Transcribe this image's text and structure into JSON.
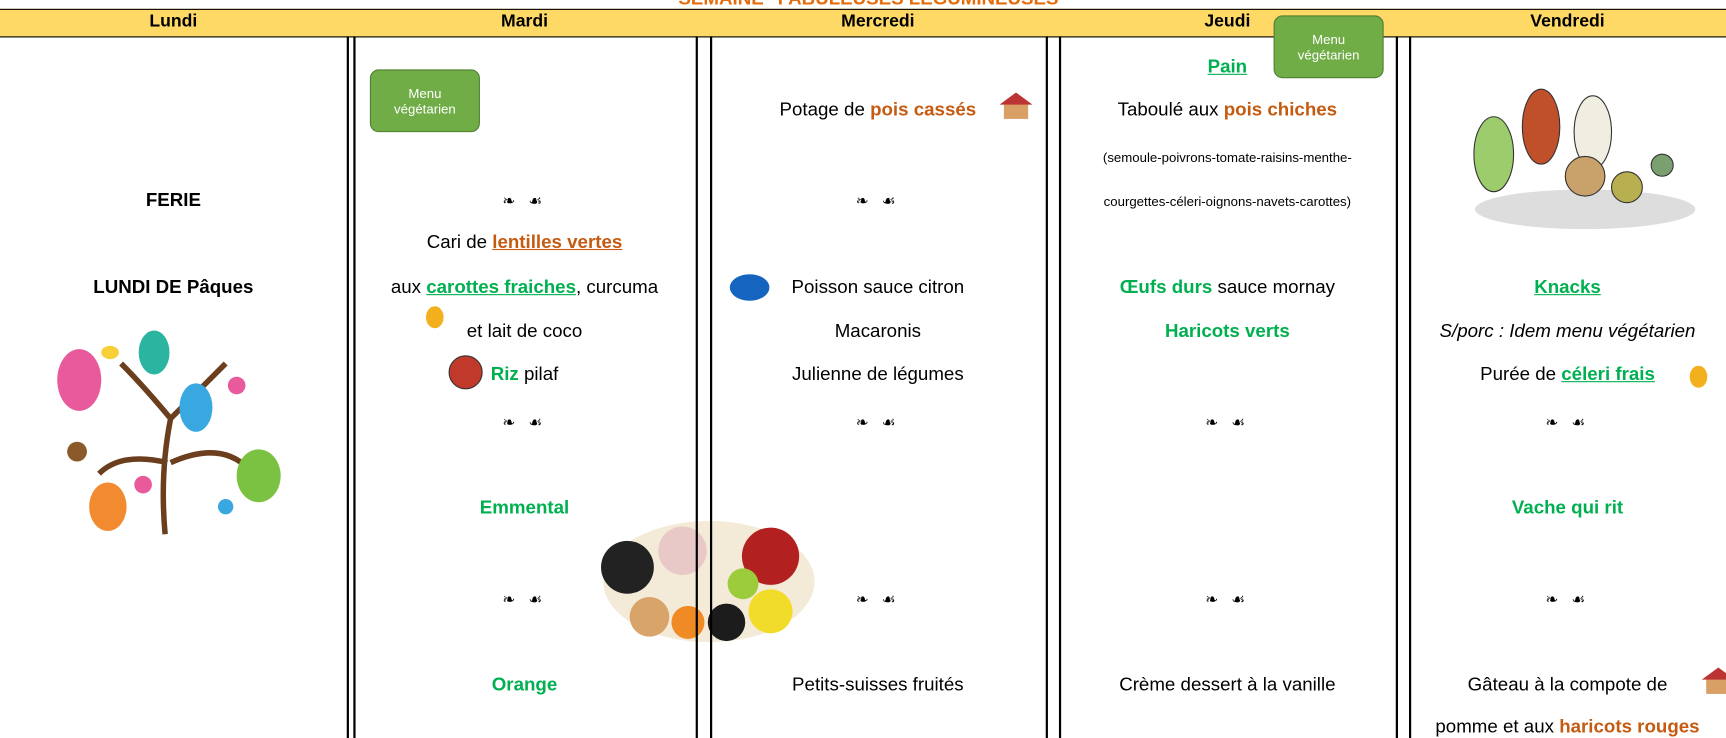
{
  "title": "SEMAINE \"FABULEUSES LÉGUMINEUSES\"",
  "badges": [
    "Menu végétarien",
    "Menu végétarien"
  ],
  "columns": [
    {
      "day": "Lundi",
      "lines": [
        null,
        null,
        null,
        [
          {
            "text": "FERIE",
            "style": "b"
          }
        ],
        null,
        [
          {
            "text": "LUNDI DE Pâques",
            "style": "b"
          }
        ],
        null,
        null,
        null,
        null,
        null,
        null,
        null
      ]
    },
    {
      "day": "Mardi",
      "lines": [
        null,
        null,
        null,
        [
          {
            "text": "❧ ☙",
            "style": "orn"
          }
        ],
        [
          {
            "text": "Cari de ",
            "style": "n"
          },
          {
            "text": "lentilles vertes",
            "style": "ou"
          }
        ],
        [
          {
            "text": "aux ",
            "style": "n"
          },
          {
            "text": "carottes fraiches",
            "style": "gu"
          },
          {
            "text": ", curcuma",
            "style": "n"
          }
        ],
        [
          {
            "text": "et lait de coco",
            "style": "n"
          }
        ],
        [
          {
            "text": "Riz",
            "style": "g"
          },
          {
            "text": " pilaf",
            "style": "n"
          }
        ],
        [
          {
            "text": "❧ ☙",
            "style": "orn"
          }
        ],
        [
          {
            "text": "Emmental",
            "style": "g"
          }
        ],
        [
          {
            "text": "❧ ☙",
            "style": "orn"
          }
        ],
        [
          {
            "text": "Orange",
            "style": "g"
          }
        ],
        null
      ]
    },
    {
      "day": "Mercredi",
      "lines": [
        null,
        [
          {
            "text": "Potage de ",
            "style": "n"
          },
          {
            "text": "pois cassés",
            "style": "o"
          }
        ],
        null,
        [
          {
            "text": "❧ ☙",
            "style": "orn"
          }
        ],
        null,
        [
          {
            "text": "Poisson sauce citron",
            "style": "n"
          }
        ],
        [
          {
            "text": "Macaronis",
            "style": "n"
          }
        ],
        [
          {
            "text": "Julienne de légumes",
            "style": "n"
          }
        ],
        [
          {
            "text": "❧ ☙",
            "style": "orn"
          }
        ],
        null,
        [
          {
            "text": "❧ ☙",
            "style": "orn"
          }
        ],
        [
          {
            "text": "Petits-suisses fruités",
            "style": "n"
          }
        ],
        null
      ]
    },
    {
      "day": "Jeudi",
      "lines": [
        [
          {
            "text": "Pain",
            "style": "gu"
          }
        ],
        [
          {
            "text": "Taboulé aux ",
            "style": "n"
          },
          {
            "text": "pois chiches",
            "style": "o"
          }
        ],
        [
          {
            "text": "(semoule-poivrons-tomate-raisins-menthe-",
            "style": "s"
          }
        ],
        [
          {
            "text": "courgettes-céleri-oignons-navets-carottes)",
            "style": "s"
          }
        ],
        null,
        [
          {
            "text": "Œufs durs",
            "style": "g"
          },
          {
            "text": " sauce mornay",
            "style": "n"
          }
        ],
        [
          {
            "text": "Haricots verts",
            "style": "g"
          }
        ],
        null,
        [
          {
            "text": "❧ ☙",
            "style": "orn"
          }
        ],
        null,
        [
          {
            "text": "❧ ☙",
            "style": "orn"
          }
        ],
        [
          {
            "text": "Crème dessert à la vanille",
            "style": "n"
          }
        ],
        null
      ]
    },
    {
      "day": "Vendredi",
      "lines": [
        null,
        null,
        null,
        null,
        null,
        [
          {
            "text": "Knacks",
            "style": "gu"
          }
        ],
        [
          {
            "text": "S/porc : Idem menu végétarien",
            "style": "i"
          }
        ],
        [
          {
            "text": "Purée de ",
            "style": "n"
          },
          {
            "text": "céleri frais",
            "style": "gu"
          }
        ],
        [
          {
            "text": "❧ ☙",
            "style": "orn"
          }
        ],
        [
          {
            "text": "Vache qui rit",
            "style": "g"
          }
        ],
        [
          {
            "text": "❧ ☙",
            "style": "orn"
          }
        ],
        [
          {
            "text": "Gâteau à la compote de",
            "style": "n"
          }
        ],
        [
          {
            "text": "pomme et aux ",
            "style": "n"
          },
          {
            "text": "haricots rouges",
            "style": "o"
          }
        ]
      ]
    }
  ]
}
